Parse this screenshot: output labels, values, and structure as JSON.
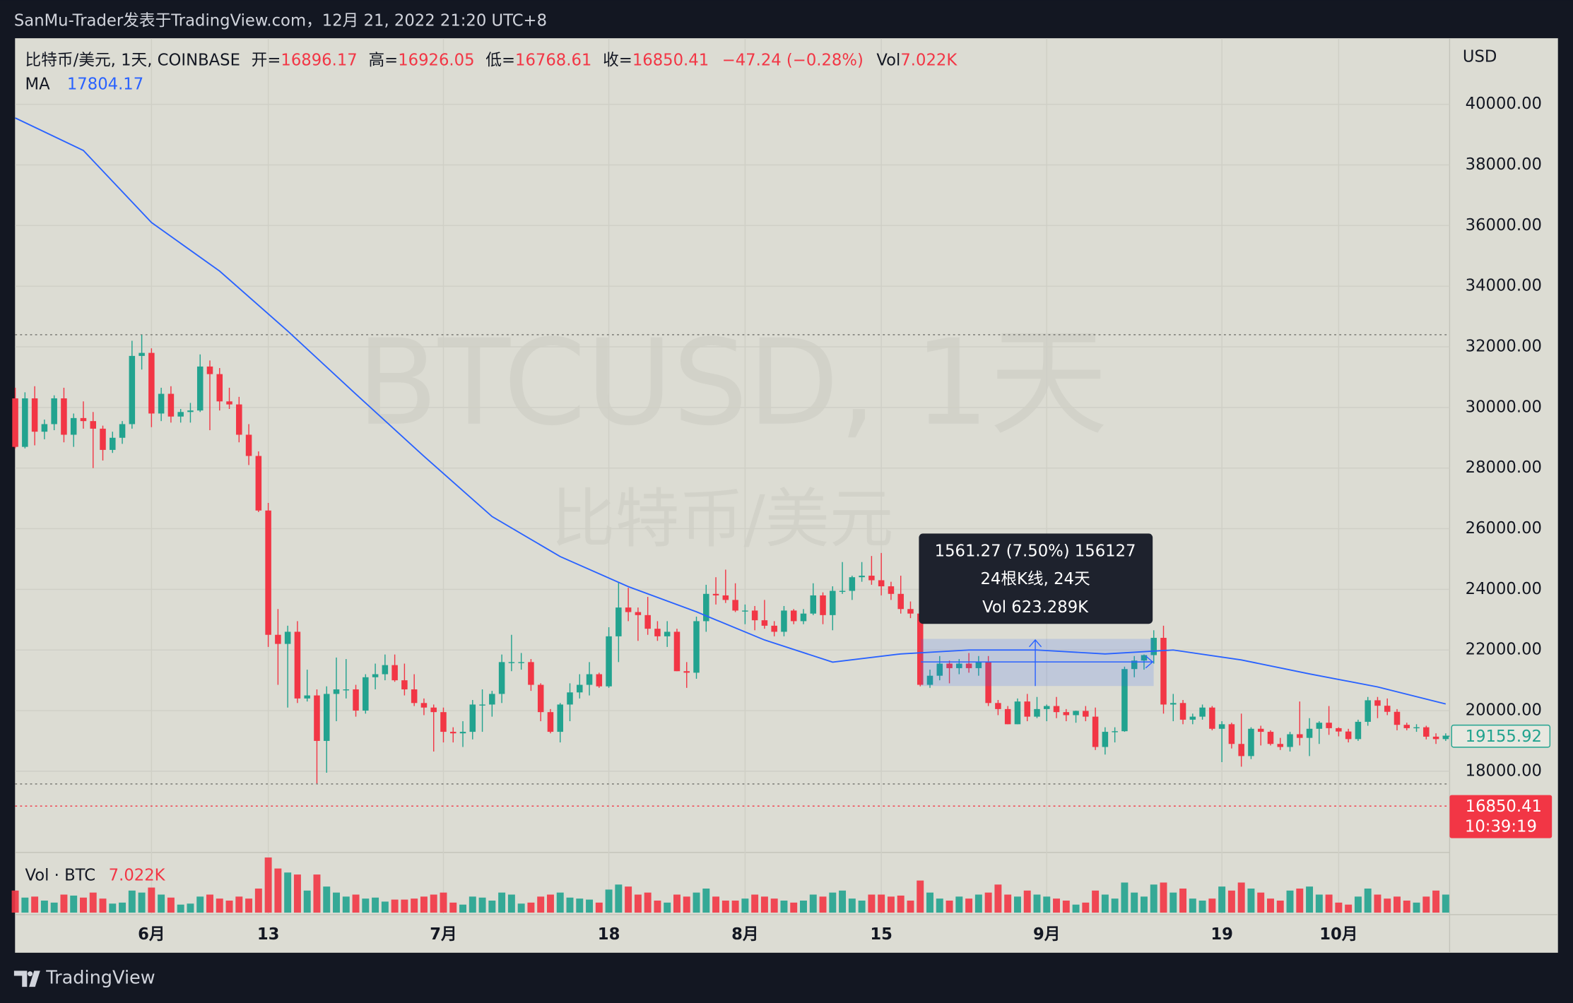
{
  "header": "SanMu-Trader发表于TradingView.com，12月 21, 2022 21:20 UTC+8",
  "footer_brand": "TradingView",
  "chart_data": {
    "type": "candlestick",
    "symbol": "比特币/美元, 1天, COINBASE",
    "legend": {
      "open_label": "开=",
      "open": 16896.17,
      "high_label": "高=",
      "high": 16926.05,
      "low_label": "低=",
      "low": 16768.61,
      "close_label": "收=",
      "close": 16850.41,
      "change": "−47.24 (−0.28%)",
      "volume_label": "Vol",
      "volume": "7.022K"
    },
    "ma": {
      "name": "MA",
      "value": 17804.17,
      "color": "#2962ff",
      "x": [
        0,
        7,
        14,
        21,
        28,
        35,
        42,
        49,
        56,
        63,
        70,
        77,
        84,
        91,
        98,
        105,
        112,
        119,
        126,
        133,
        140,
        147
      ],
      "values": [
        39550,
        38480,
        36100,
        34500,
        32520,
        30440,
        28390,
        26400,
        25080,
        24090,
        23260,
        22330,
        21600,
        21870,
        22000,
        22000,
        21870,
        22000,
        21670,
        21210,
        20780,
        20220
      ]
    },
    "watermark": {
      "symbol": "BTCUSD, 1天",
      "name": "比特币/美元"
    },
    "currency": "USD",
    "countdown": "10:39:19",
    "up_color": "#22a38f",
    "down_color": "#f23645",
    "candles": [
      [
        30300,
        30650,
        28650,
        28700
      ],
      [
        28700,
        30500,
        28650,
        30300
      ],
      [
        30300,
        30700,
        28750,
        29200
      ],
      [
        29200,
        29600,
        28950,
        29450
      ],
      [
        29450,
        30400,
        29250,
        30300
      ],
      [
        30300,
        30650,
        28850,
        29100
      ],
      [
        29100,
        29800,
        28700,
        29650
      ],
      [
        29650,
        30200,
        29300,
        29550
      ],
      [
        29550,
        29850,
        28000,
        29300
      ],
      [
        29300,
        29400,
        28250,
        28600
      ],
      [
        28600,
        29200,
        28500,
        29000
      ],
      [
        29000,
        29550,
        28800,
        29450
      ],
      [
        29450,
        32200,
        29300,
        31700
      ],
      [
        31700,
        32400,
        31250,
        31800
      ],
      [
        31800,
        31950,
        29350,
        29800
      ],
      [
        29800,
        30650,
        29550,
        30450
      ],
      [
        30450,
        30700,
        29500,
        29700
      ],
      [
        29700,
        29950,
        29500,
        29850
      ],
      [
        29850,
        30150,
        29500,
        29900
      ],
      [
        29900,
        31750,
        29850,
        31350
      ],
      [
        31350,
        31550,
        29250,
        31100
      ],
      [
        31100,
        31300,
        29900,
        30200
      ],
      [
        30200,
        30650,
        29950,
        30100
      ],
      [
        30100,
        30350,
        28850,
        29100
      ],
      [
        29100,
        29450,
        28100,
        28400
      ],
      [
        28400,
        28550,
        26550,
        26600
      ],
      [
        26600,
        26850,
        22100,
        22500
      ],
      [
        22500,
        23350,
        20850,
        22200
      ],
      [
        22200,
        22800,
        20100,
        22600
      ],
      [
        22600,
        22950,
        20250,
        20400
      ],
      [
        20400,
        21350,
        20300,
        20500
      ],
      [
        20500,
        20700,
        17600,
        19000
      ],
      [
        19000,
        20800,
        17950,
        20550
      ],
      [
        20550,
        21750,
        19650,
        20700
      ],
      [
        20700,
        21700,
        20400,
        20700
      ],
      [
        20700,
        20850,
        19800,
        20000
      ],
      [
        20000,
        21200,
        19900,
        21100
      ],
      [
        21100,
        21550,
        20700,
        21200
      ],
      [
        21200,
        21850,
        21000,
        21500
      ],
      [
        21500,
        21850,
        20950,
        21000
      ],
      [
        21000,
        21550,
        20500,
        20700
      ],
      [
        20700,
        21200,
        20150,
        20250
      ],
      [
        20250,
        20400,
        19850,
        20100
      ],
      [
        20100,
        20200,
        18650,
        19950
      ],
      [
        19950,
        20100,
        18950,
        19300
      ],
      [
        19300,
        19450,
        18950,
        19250
      ],
      [
        19250,
        19650,
        18800,
        19300
      ],
      [
        19300,
        20350,
        19050,
        20200
      ],
      [
        20200,
        20700,
        19300,
        20200
      ],
      [
        20200,
        20650,
        19800,
        20550
      ],
      [
        20550,
        21850,
        20250,
        21600
      ],
      [
        21600,
        22500,
        21300,
        21600
      ],
      [
        21600,
        21900,
        21350,
        21600
      ],
      [
        21600,
        21700,
        20650,
        20850
      ],
      [
        20850,
        20900,
        19650,
        19950
      ],
      [
        19950,
        20050,
        19250,
        19300
      ],
      [
        19300,
        20250,
        18950,
        20200
      ],
      [
        20200,
        20900,
        19650,
        20600
      ],
      [
        20600,
        21200,
        20400,
        20850
      ],
      [
        20850,
        21600,
        20500,
        21200
      ],
      [
        21200,
        21250,
        20750,
        20800
      ],
      [
        20800,
        22750,
        20750,
        22450
      ],
      [
        22450,
        24250,
        21600,
        23400
      ],
      [
        23400,
        24050,
        22950,
        23250
      ],
      [
        23250,
        23400,
        22300,
        23150
      ],
      [
        23150,
        23750,
        22500,
        22700
      ],
      [
        22700,
        22950,
        22300,
        22450
      ],
      [
        22450,
        22950,
        22100,
        22600
      ],
      [
        22600,
        22700,
        21300,
        21300
      ],
      [
        21300,
        21600,
        20750,
        21250
      ],
      [
        21250,
        23100,
        21050,
        22950
      ],
      [
        22950,
        24150,
        22600,
        23850
      ],
      [
        23850,
        24400,
        23500,
        23800
      ],
      [
        23800,
        24650,
        23550,
        23650
      ],
      [
        23650,
        24200,
        23250,
        23300
      ],
      [
        23300,
        23500,
        22850,
        23300
      ],
      [
        23300,
        23450,
        22650,
        22980
      ],
      [
        22980,
        23650,
        22700,
        22800
      ],
      [
        22800,
        22950,
        22450,
        22600
      ],
      [
        22600,
        23450,
        22450,
        23300
      ],
      [
        23300,
        23350,
        22850,
        22950
      ],
      [
        22950,
        23350,
        22850,
        23200
      ],
      [
        23200,
        24200,
        23150,
        23800
      ],
      [
        23800,
        23900,
        22850,
        23150
      ],
      [
        23150,
        24100,
        22650,
        23950
      ],
      [
        23950,
        24900,
        23850,
        23950
      ],
      [
        23950,
        24450,
        23650,
        24400
      ],
      [
        24400,
        24900,
        24250,
        24450
      ],
      [
        24450,
        25100,
        24150,
        24300
      ],
      [
        24300,
        25200,
        23800,
        24100
      ],
      [
        24100,
        24250,
        23650,
        23850
      ],
      [
        23850,
        24450,
        23200,
        23350
      ],
      [
        23350,
        23600,
        23050,
        23200
      ],
      [
        23200,
        23250,
        20800,
        20850
      ],
      [
        20850,
        21350,
        20750,
        21150
      ],
      [
        21150,
        21800,
        21000,
        21550
      ],
      [
        21550,
        21650,
        20900,
        21400
      ],
      [
        21400,
        21700,
        21200,
        21550
      ],
      [
        21550,
        21900,
        21250,
        21400
      ],
      [
        21400,
        21800,
        21150,
        21600
      ],
      [
        21600,
        21800,
        20150,
        20250
      ],
      [
        20250,
        20350,
        19850,
        20050
      ],
      [
        20050,
        20150,
        19550,
        19550
      ],
      [
        19550,
        20400,
        19550,
        20300
      ],
      [
        20300,
        20550,
        19650,
        19800
      ],
      [
        19800,
        20450,
        19750,
        20050
      ],
      [
        20050,
        20200,
        19650,
        20150
      ],
      [
        20150,
        20450,
        19750,
        19950
      ],
      [
        19950,
        20050,
        19650,
        19850
      ],
      [
        19850,
        20000,
        19600,
        19990
      ],
      [
        19990,
        20150,
        19650,
        19800
      ],
      [
        19800,
        20100,
        18700,
        18800
      ],
      [
        18800,
        19450,
        18550,
        19300
      ],
      [
        19300,
        19450,
        18950,
        19320
      ],
      [
        19320,
        21450,
        19300,
        21370
      ],
      [
        21370,
        21800,
        21100,
        21650
      ],
      [
        21650,
        21850,
        21350,
        21830
      ],
      [
        21830,
        22650,
        21550,
        22400
      ],
      [
        22400,
        22800,
        19900,
        20200
      ],
      [
        20200,
        20550,
        19650,
        20250
      ],
      [
        20250,
        20350,
        19550,
        19700
      ],
      [
        19700,
        19900,
        19550,
        19800
      ],
      [
        19800,
        20200,
        19700,
        20100
      ],
      [
        20100,
        20150,
        19350,
        19400
      ],
      [
        19400,
        19650,
        18300,
        19550
      ],
      [
        19550,
        19600,
        18750,
        18900
      ],
      [
        18900,
        19900,
        18150,
        18500
      ],
      [
        18500,
        19450,
        18400,
        19400
      ],
      [
        19400,
        19500,
        18850,
        19300
      ],
      [
        19300,
        19350,
        18850,
        18900
      ],
      [
        18900,
        19100,
        18700,
        18800
      ],
      [
        18800,
        19300,
        18650,
        19220
      ],
      [
        19220,
        20300,
        18850,
        19100
      ],
      [
        19100,
        19750,
        18500,
        19400
      ],
      [
        19400,
        19650,
        18900,
        19600
      ],
      [
        19600,
        20150,
        19200,
        19420
      ],
      [
        19420,
        19450,
        19150,
        19310
      ],
      [
        19310,
        19400,
        18950,
        19060
      ],
      [
        19060,
        19700,
        19000,
        19630
      ],
      [
        19630,
        20450,
        19500,
        20340
      ],
      [
        20340,
        20450,
        19750,
        20160
      ],
      [
        20160,
        20400,
        19850,
        19960
      ],
      [
        19960,
        20050,
        19350,
        19530
      ],
      [
        19530,
        19600,
        19350,
        19420
      ],
      [
        19420,
        19550,
        19300,
        19450
      ],
      [
        19450,
        19500,
        19050,
        19140
      ],
      [
        19140,
        19250,
        18900,
        19060
      ],
      [
        19060,
        19250,
        19000,
        19155.92
      ]
    ],
    "volume_pane": {
      "title": "Vol · BTC",
      "last": "7.022K",
      "values": [
        22,
        15,
        16,
        12,
        10,
        18,
        17,
        15,
        20,
        14,
        9,
        10,
        22,
        20,
        25,
        18,
        15,
        8,
        9,
        16,
        18,
        14,
        12,
        16,
        14,
        24,
        55,
        44,
        40,
        38,
        22,
        38,
        26,
        20,
        16,
        18,
        14,
        15,
        11,
        13,
        13,
        14,
        16,
        18,
        20,
        10,
        8,
        16,
        15,
        12,
        20,
        18,
        9,
        10,
        16,
        18,
        20,
        15,
        14,
        13,
        10,
        23,
        28,
        26,
        18,
        20,
        12,
        10,
        18,
        16,
        20,
        24,
        16,
        12,
        12,
        14,
        18,
        16,
        14,
        12,
        10,
        12,
        18,
        16,
        20,
        22,
        14,
        12,
        18,
        18,
        16,
        17,
        12,
        32,
        20,
        14,
        12,
        16,
        14,
        18,
        20,
        28,
        18,
        16,
        22,
        18,
        16,
        14,
        12,
        8,
        10,
        22,
        18,
        14,
        30,
        20,
        16,
        28,
        30,
        20,
        24,
        14,
        12,
        14,
        26,
        22,
        30,
        24,
        20,
        14,
        12,
        22,
        24,
        26,
        18,
        18,
        10,
        8,
        16,
        24,
        18,
        14,
        16,
        12,
        10,
        16,
        22,
        18
      ]
    },
    "ylim": [
      15320,
      42180
    ],
    "yticks": [
      {
        "value": 18000,
        "label": "18000.00"
      },
      {
        "value": 20000,
        "label": "20000.00"
      },
      {
        "value": 22000,
        "label": "22000.00"
      },
      {
        "value": 24000,
        "label": "24000.00"
      },
      {
        "value": 26000,
        "label": "26000.00"
      },
      {
        "value": 28000,
        "label": "28000.00"
      },
      {
        "value": 30000,
        "label": "30000.00"
      },
      {
        "value": 32000,
        "label": "32000.00"
      },
      {
        "value": 34000,
        "label": "34000.00"
      },
      {
        "value": 36000,
        "label": "36000.00"
      },
      {
        "value": 38000,
        "label": "38000.00"
      },
      {
        "value": 40000,
        "label": "40000.00"
      }
    ],
    "xticks": [
      {
        "value": 14,
        "label": "6月"
      },
      {
        "value": 26,
        "label": "13"
      },
      {
        "value": 44,
        "label": "7月"
      },
      {
        "value": 61,
        "label": "18"
      },
      {
        "value": 75,
        "label": "8月"
      },
      {
        "value": 89,
        "label": "15"
      },
      {
        "value": 106,
        "label": "9月"
      },
      {
        "value": 124,
        "label": "19"
      },
      {
        "value": 136,
        "label": "10月"
      }
    ],
    "grid": true,
    "reference_lines": [
      32400,
      17580
    ],
    "measure": {
      "lines": [
        "1561.27 (7.50%) 156127",
        "24根K线, 24天",
        "Vol 623.289K"
      ]
    }
  }
}
